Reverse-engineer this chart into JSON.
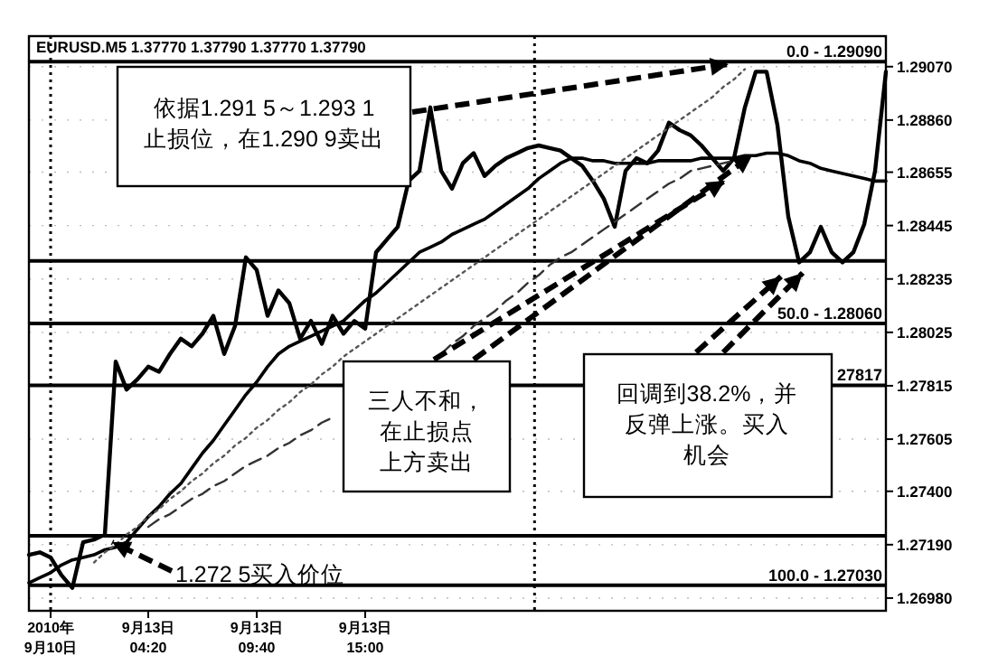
{
  "chart_data": {
    "type": "line",
    "title": "EURUSD.M5  1.37770 1.37790 1.37770 1.37790",
    "categories": [
      null,
      null,
      "2010年\n9月10日",
      null,
      null,
      null,
      null,
      null,
      null,
      null,
      null,
      "9月13日\n04:20",
      null,
      null,
      null,
      null,
      null,
      null,
      null,
      null,
      null,
      "9月13日\n09:40",
      null,
      null,
      null,
      null,
      null,
      null,
      null,
      null,
      null,
      "9月13日\n15:00",
      null,
      null,
      null,
      null,
      null,
      null,
      null,
      null,
      null,
      null,
      null,
      null,
      null,
      null,
      null,
      null,
      null,
      null,
      null,
      null,
      null,
      null,
      null,
      null,
      null,
      null,
      null,
      null,
      null,
      null,
      null,
      null,
      null,
      null,
      null,
      null,
      null,
      null,
      null,
      null,
      null,
      null,
      null,
      null,
      null,
      null,
      null,
      null
    ],
    "ylim": [
      1.2693,
      1.2919
    ],
    "yticks": [
      {
        "value": 1.2698,
        "label": "1.26980"
      },
      {
        "value": 1.2719,
        "label": "1.27190"
      },
      {
        "value": 1.274,
        "label": "1.27400"
      },
      {
        "value": 1.27605,
        "label": "1.27605"
      },
      {
        "value": 1.27815,
        "label": "1.27815"
      },
      {
        "value": 1.28025,
        "label": "1.28025"
      },
      {
        "value": 1.28235,
        "label": "1.28235"
      },
      {
        "value": 1.28445,
        "label": "1.28445"
      },
      {
        "value": 1.28655,
        "label": "1.28655"
      },
      {
        "value": 1.2886,
        "label": "1.28860"
      },
      {
        "value": 1.2907,
        "label": "1.29070"
      }
    ],
    "grid": "y",
    "series": [
      {
        "color": "#000000",
        "line_style": "solid",
        "values": [
          1.2715,
          1.2716,
          1.2714,
          1.2707,
          1.2702,
          1.272,
          1.2721,
          1.2723,
          1.2791,
          1.278,
          1.2784,
          1.2789,
          1.2787,
          1.2794,
          1.28,
          1.2797,
          1.2802,
          1.2809,
          1.2794,
          1.2805,
          1.2832,
          1.2827,
          1.2809,
          1.2819,
          1.2814,
          1.28,
          1.2807,
          1.2798,
          1.2809,
          1.2802,
          1.2807,
          1.2804,
          1.2834,
          1.2839,
          1.2844,
          1.2862,
          1.2866,
          1.2891,
          1.2866,
          1.2859,
          1.2869,
          1.2873,
          1.2864,
          1.2868,
          1.2871,
          1.2873,
          1.2875,
          1.2876,
          1.2875,
          1.2874,
          1.2871,
          1.2868,
          1.2862,
          1.2855,
          1.2844,
          1.2866,
          1.2871,
          1.2869,
          1.2874,
          1.2885,
          1.2882,
          1.288,
          1.2876,
          1.2871,
          1.2866,
          1.2871,
          1.2891,
          1.2905,
          1.2905,
          1.2884,
          1.2848,
          1.283,
          1.2834,
          1.2844,
          1.2834,
          1.283,
          1.2834,
          1.2845,
          1.2866,
          1.2905
        ]
      },
      {
        "color": "#000000",
        "line_style": "solid",
        "values": [
          1.2704,
          1.2706,
          1.2708,
          1.2711,
          1.2713,
          1.2714,
          1.2715,
          1.2717,
          1.2718,
          1.272,
          1.2725,
          1.273,
          1.2734,
          1.2739,
          1.2743,
          1.2749,
          1.2755,
          1.276,
          1.2766,
          1.2772,
          1.2778,
          1.2783,
          1.2789,
          1.2794,
          1.2797,
          1.2799,
          1.2801,
          1.2803,
          1.2805,
          1.2807,
          1.2811,
          1.2815,
          1.2818,
          1.2822,
          1.2826,
          1.283,
          1.2834,
          1.2836,
          1.2838,
          1.2841,
          1.2843,
          1.2845,
          1.2847,
          1.285,
          1.2853,
          1.2856,
          1.2859,
          1.2863,
          1.2866,
          1.2869,
          1.2871,
          1.2871,
          1.287,
          1.287,
          1.2869,
          1.2869,
          1.2869,
          1.2869,
          1.287,
          1.287,
          1.287,
          1.287,
          1.2871,
          1.2871,
          1.2871,
          1.2871,
          1.2872,
          1.2872,
          1.2873,
          1.2873,
          1.2872,
          1.287,
          1.2869,
          1.2867,
          1.2866,
          1.2865,
          1.2864,
          1.2863,
          1.2862,
          1.2862
        ]
      },
      {
        "color": "#555555",
        "line_style": "dotted",
        "values": [
          null,
          null,
          null,
          null,
          null,
          null,
          1.2712,
          1.2716,
          1.2719,
          1.2723,
          1.2726,
          1.273,
          1.2733,
          1.2737,
          1.274,
          1.2744,
          1.2747,
          1.2751,
          1.2754,
          1.2758,
          1.2761,
          1.2765,
          1.2768,
          1.2772,
          1.2775,
          1.2779,
          1.2782,
          1.2786,
          1.2789,
          1.2793,
          1.2796,
          1.2799,
          1.2802,
          1.2805,
          1.2808,
          1.2811,
          1.2814,
          1.2817,
          1.282,
          1.2823,
          1.2826,
          1.2829,
          1.2832,
          1.2835,
          1.2838,
          1.2841,
          1.2844,
          1.2847,
          1.285,
          1.2853,
          1.2856,
          1.2859,
          1.2862,
          1.2865,
          1.2868,
          1.2871,
          1.2874,
          1.2877,
          1.288,
          1.2883,
          1.2886,
          1.2889,
          1.2892,
          1.2895,
          1.2899,
          1.2902,
          1.2906,
          null,
          null,
          null,
          null,
          null,
          null,
          null,
          null,
          null,
          null,
          null,
          null,
          null
        ]
      },
      {
        "color": "#333333",
        "line_style": "dashed",
        "values": [
          null,
          null,
          null,
          null,
          null,
          null,
          null,
          null,
          null,
          null,
          null,
          1.2726,
          1.2729,
          1.2731,
          1.2734,
          1.2737,
          1.2739,
          1.2742,
          1.2744,
          1.2747,
          1.275,
          1.2752,
          1.2754,
          1.2757,
          1.2759,
          1.2762,
          1.2764,
          1.2767,
          1.2769,
          null,
          null,
          null,
          null,
          null,
          null,
          null,
          null,
          null,
          1.2794,
          1.2798,
          1.2801,
          1.2805,
          1.2808,
          1.2811,
          1.2815,
          1.2818,
          1.2822,
          1.2825,
          1.2829,
          1.2832,
          1.2834,
          1.2837,
          1.284,
          1.2843,
          1.2846,
          1.2849,
          1.2852,
          1.2855,
          1.2858,
          1.2861,
          1.2863,
          1.2866,
          1.2867,
          1.2868,
          1.2869,
          1.287,
          1.2871,
          null,
          null,
          null,
          null,
          null,
          null,
          null,
          null,
          null,
          null,
          null,
          null,
          null
        ]
      }
    ],
    "ref_lines": [
      {
        "axis": "y",
        "value": 1.2909
      },
      {
        "axis": "y",
        "value": 1.28306
      },
      {
        "axis": "y",
        "value": 1.2806
      },
      {
        "axis": "y",
        "value": 1.27817
      },
      {
        "axis": "y",
        "value": 1.27225
      },
      {
        "axis": "y",
        "value": 1.2703
      },
      {
        "axis": "x",
        "value": "2010年\n9月10日",
        "line_style": "dotted"
      }
    ],
    "annotations": [
      {
        "text": "依据1.291 5～1.293 1\n止损位，在1.290 9卖出",
        "y": 1.2908
      },
      "三人不和，在止损点上方卖出",
      "回调到38.2%，并反弹上涨。买入机会",
      {
        "text": "1.272 5买入价位",
        "y": 1.272
      },
      {
        "text": "0.0 - 1.29090",
        "y": 1.2909
      },
      {
        "text": "50.0 - 1.28060",
        "y": 1.2806
      },
      {
        "text": "27817",
        "y": 1.27817
      },
      {
        "text": "100.0 - 1.27030",
        "y": 1.2703
      }
    ]
  }
}
